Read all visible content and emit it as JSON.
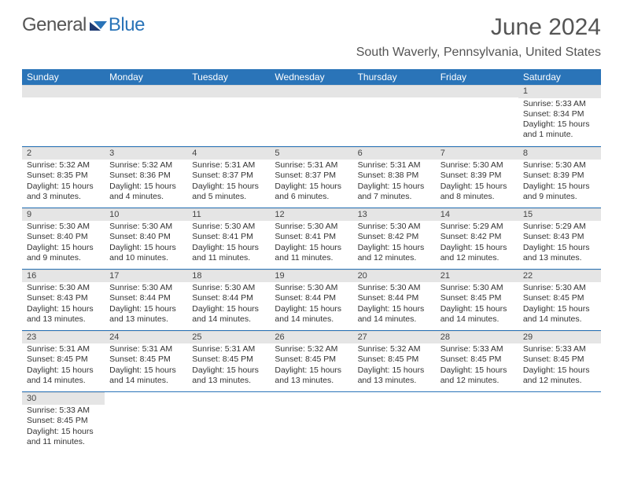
{
  "brand": {
    "general": "General",
    "blue": "Blue"
  },
  "title": "June 2024",
  "location": "South Waverly, Pennsylvania, United States",
  "columns": [
    "Sunday",
    "Monday",
    "Tuesday",
    "Wednesday",
    "Thursday",
    "Friday",
    "Saturday"
  ],
  "colors": {
    "header_bg": "#2a74b8",
    "header_text": "#ffffff",
    "daybar_bg": "#e5e5e5",
    "rule": "#2a74b8",
    "text": "#333333",
    "title_text": "#555555"
  },
  "typography": {
    "title_fontsize": 30,
    "location_fontsize": 16,
    "header_fontsize": 12,
    "cell_fontsize": 10.5,
    "daynum_fontsize": 11
  },
  "weeks": [
    [
      null,
      null,
      null,
      null,
      null,
      null,
      {
        "n": "1",
        "sunrise": "Sunrise: 5:33 AM",
        "sunset": "Sunset: 8:34 PM",
        "dl1": "Daylight: 15 hours",
        "dl2": "and 1 minute."
      }
    ],
    [
      {
        "n": "2",
        "sunrise": "Sunrise: 5:32 AM",
        "sunset": "Sunset: 8:35 PM",
        "dl1": "Daylight: 15 hours",
        "dl2": "and 3 minutes."
      },
      {
        "n": "3",
        "sunrise": "Sunrise: 5:32 AM",
        "sunset": "Sunset: 8:36 PM",
        "dl1": "Daylight: 15 hours",
        "dl2": "and 4 minutes."
      },
      {
        "n": "4",
        "sunrise": "Sunrise: 5:31 AM",
        "sunset": "Sunset: 8:37 PM",
        "dl1": "Daylight: 15 hours",
        "dl2": "and 5 minutes."
      },
      {
        "n": "5",
        "sunrise": "Sunrise: 5:31 AM",
        "sunset": "Sunset: 8:37 PM",
        "dl1": "Daylight: 15 hours",
        "dl2": "and 6 minutes."
      },
      {
        "n": "6",
        "sunrise": "Sunrise: 5:31 AM",
        "sunset": "Sunset: 8:38 PM",
        "dl1": "Daylight: 15 hours",
        "dl2": "and 7 minutes."
      },
      {
        "n": "7",
        "sunrise": "Sunrise: 5:30 AM",
        "sunset": "Sunset: 8:39 PM",
        "dl1": "Daylight: 15 hours",
        "dl2": "and 8 minutes."
      },
      {
        "n": "8",
        "sunrise": "Sunrise: 5:30 AM",
        "sunset": "Sunset: 8:39 PM",
        "dl1": "Daylight: 15 hours",
        "dl2": "and 9 minutes."
      }
    ],
    [
      {
        "n": "9",
        "sunrise": "Sunrise: 5:30 AM",
        "sunset": "Sunset: 8:40 PM",
        "dl1": "Daylight: 15 hours",
        "dl2": "and 9 minutes."
      },
      {
        "n": "10",
        "sunrise": "Sunrise: 5:30 AM",
        "sunset": "Sunset: 8:40 PM",
        "dl1": "Daylight: 15 hours",
        "dl2": "and 10 minutes."
      },
      {
        "n": "11",
        "sunrise": "Sunrise: 5:30 AM",
        "sunset": "Sunset: 8:41 PM",
        "dl1": "Daylight: 15 hours",
        "dl2": "and 11 minutes."
      },
      {
        "n": "12",
        "sunrise": "Sunrise: 5:30 AM",
        "sunset": "Sunset: 8:41 PM",
        "dl1": "Daylight: 15 hours",
        "dl2": "and 11 minutes."
      },
      {
        "n": "13",
        "sunrise": "Sunrise: 5:30 AM",
        "sunset": "Sunset: 8:42 PM",
        "dl1": "Daylight: 15 hours",
        "dl2": "and 12 minutes."
      },
      {
        "n": "14",
        "sunrise": "Sunrise: 5:29 AM",
        "sunset": "Sunset: 8:42 PM",
        "dl1": "Daylight: 15 hours",
        "dl2": "and 12 minutes."
      },
      {
        "n": "15",
        "sunrise": "Sunrise: 5:29 AM",
        "sunset": "Sunset: 8:43 PM",
        "dl1": "Daylight: 15 hours",
        "dl2": "and 13 minutes."
      }
    ],
    [
      {
        "n": "16",
        "sunrise": "Sunrise: 5:30 AM",
        "sunset": "Sunset: 8:43 PM",
        "dl1": "Daylight: 15 hours",
        "dl2": "and 13 minutes."
      },
      {
        "n": "17",
        "sunrise": "Sunrise: 5:30 AM",
        "sunset": "Sunset: 8:44 PM",
        "dl1": "Daylight: 15 hours",
        "dl2": "and 13 minutes."
      },
      {
        "n": "18",
        "sunrise": "Sunrise: 5:30 AM",
        "sunset": "Sunset: 8:44 PM",
        "dl1": "Daylight: 15 hours",
        "dl2": "and 14 minutes."
      },
      {
        "n": "19",
        "sunrise": "Sunrise: 5:30 AM",
        "sunset": "Sunset: 8:44 PM",
        "dl1": "Daylight: 15 hours",
        "dl2": "and 14 minutes."
      },
      {
        "n": "20",
        "sunrise": "Sunrise: 5:30 AM",
        "sunset": "Sunset: 8:44 PM",
        "dl1": "Daylight: 15 hours",
        "dl2": "and 14 minutes."
      },
      {
        "n": "21",
        "sunrise": "Sunrise: 5:30 AM",
        "sunset": "Sunset: 8:45 PM",
        "dl1": "Daylight: 15 hours",
        "dl2": "and 14 minutes."
      },
      {
        "n": "22",
        "sunrise": "Sunrise: 5:30 AM",
        "sunset": "Sunset: 8:45 PM",
        "dl1": "Daylight: 15 hours",
        "dl2": "and 14 minutes."
      }
    ],
    [
      {
        "n": "23",
        "sunrise": "Sunrise: 5:31 AM",
        "sunset": "Sunset: 8:45 PM",
        "dl1": "Daylight: 15 hours",
        "dl2": "and 14 minutes."
      },
      {
        "n": "24",
        "sunrise": "Sunrise: 5:31 AM",
        "sunset": "Sunset: 8:45 PM",
        "dl1": "Daylight: 15 hours",
        "dl2": "and 14 minutes."
      },
      {
        "n": "25",
        "sunrise": "Sunrise: 5:31 AM",
        "sunset": "Sunset: 8:45 PM",
        "dl1": "Daylight: 15 hours",
        "dl2": "and 13 minutes."
      },
      {
        "n": "26",
        "sunrise": "Sunrise: 5:32 AM",
        "sunset": "Sunset: 8:45 PM",
        "dl1": "Daylight: 15 hours",
        "dl2": "and 13 minutes."
      },
      {
        "n": "27",
        "sunrise": "Sunrise: 5:32 AM",
        "sunset": "Sunset: 8:45 PM",
        "dl1": "Daylight: 15 hours",
        "dl2": "and 13 minutes."
      },
      {
        "n": "28",
        "sunrise": "Sunrise: 5:33 AM",
        "sunset": "Sunset: 8:45 PM",
        "dl1": "Daylight: 15 hours",
        "dl2": "and 12 minutes."
      },
      {
        "n": "29",
        "sunrise": "Sunrise: 5:33 AM",
        "sunset": "Sunset: 8:45 PM",
        "dl1": "Daylight: 15 hours",
        "dl2": "and 12 minutes."
      }
    ],
    [
      {
        "n": "30",
        "sunrise": "Sunrise: 5:33 AM",
        "sunset": "Sunset: 8:45 PM",
        "dl1": "Daylight: 15 hours",
        "dl2": "and 11 minutes."
      },
      null,
      null,
      null,
      null,
      null,
      null
    ]
  ]
}
